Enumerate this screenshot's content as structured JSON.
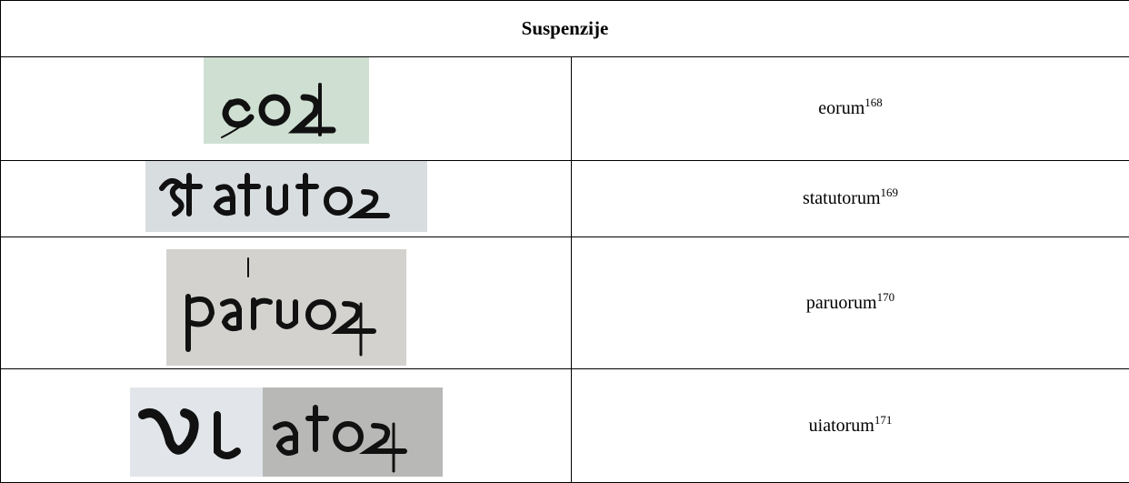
{
  "table": {
    "title": "Suspenzije",
    "rows": [
      {
        "word": "eorum",
        "note": "168"
      },
      {
        "word": "statutorum",
        "note": "169"
      },
      {
        "word": "paruorum",
        "note": "170"
      },
      {
        "word": "uiatorum",
        "note": "171"
      }
    ]
  }
}
